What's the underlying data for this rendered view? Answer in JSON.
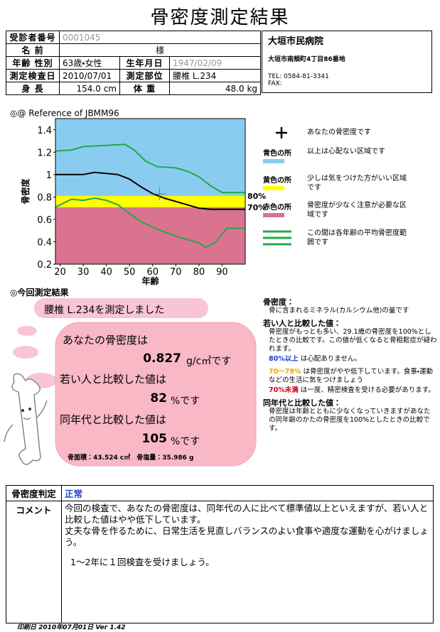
{
  "title": "骨密度測定結果",
  "patient": {
    "rows": [
      [
        "受診者番号",
        "0001045"
      ],
      [
        "名 前",
        "様"
      ],
      [
        "年齢 性別",
        "63歳・女性",
        "生年月日",
        "1947/02/09"
      ],
      [
        "測定検査日",
        "2010/07/01",
        "測定部位",
        "腰椎 L.234"
      ],
      [
        "身 長",
        "154.0 cm",
        "体 重",
        "48.0 kg"
      ]
    ]
  },
  "hospital": {
    "name": "大垣市民病院",
    "address": "大垣市南頬町4丁目86番地",
    "tel": "TEL: 0584-81-3341",
    "fax": "FAX:"
  },
  "chart": {
    "type": "line",
    "title": "◎@ Reference of JBMM96",
    "ylabel": "骨密度",
    "xlabel": "年齢",
    "xlim": [
      18,
      100
    ],
    "ylim": [
      0.2,
      1.5
    ],
    "xticks": [
      20,
      30,
      40,
      50,
      60,
      70,
      80,
      90
    ],
    "yticks": [
      0.2,
      0.4,
      0.6,
      0.8,
      1,
      1.2,
      1.4
    ],
    "thresholds": [
      {
        "value": 0.809,
        "label": "80%"
      },
      {
        "value": 0.708,
        "label": "70%"
      }
    ],
    "zone_colors": [
      "#8accf0",
      "#ffff00",
      "#d9738f"
    ],
    "series": [
      {
        "color": "#000000",
        "x": [
          18,
          30,
          35,
          40,
          45,
          50,
          55,
          60,
          65,
          70,
          75,
          80,
          85,
          90,
          100
        ],
        "y": [
          1.0,
          1.0,
          1.02,
          1.01,
          1.0,
          0.96,
          0.89,
          0.83,
          0.79,
          0.76,
          0.73,
          0.7,
          0.69,
          0.69,
          0.69
        ]
      },
      {
        "color": "#22a84a",
        "x": [
          18,
          25,
          30,
          40,
          48,
          52,
          57,
          62,
          70,
          75,
          80,
          85,
          90,
          100
        ],
        "y": [
          1.21,
          1.22,
          1.25,
          1.26,
          1.27,
          1.22,
          1.12,
          1.07,
          1.06,
          1.03,
          0.98,
          0.9,
          0.84,
          0.84
        ]
      },
      {
        "color": "#22a84a",
        "x": [
          18,
          25,
          30,
          35,
          40,
          45,
          50,
          55,
          60,
          65,
          70,
          75,
          80,
          83,
          87,
          92,
          100
        ],
        "y": [
          0.71,
          0.78,
          0.77,
          0.79,
          0.77,
          0.73,
          0.65,
          0.58,
          0.53,
          0.49,
          0.45,
          0.42,
          0.39,
          0.35,
          0.39,
          0.52,
          0.52
        ]
      }
    ],
    "point": {
      "x": 63,
      "y": 0.827,
      "color": "#777777"
    },
    "legend": [
      {
        "text": "あなたの骨密度です"
      },
      {
        "key": "青色の所",
        "text": "以上は心配ない区域です"
      },
      {
        "key": "黄色の所",
        "text": "少しは気をつけた方がいい区域です"
      },
      {
        "key": "赤色の所",
        "text": "骨密度が少なく注意が必要な区域です"
      },
      {
        "text": "この間は各年齢の平均骨密度範囲です"
      }
    ]
  },
  "result": {
    "heading": "◎今回測定結果",
    "site": "腰椎 L.234を測定しました",
    "bmd_label": "あなたの骨密度は",
    "bmd": "0.827",
    "bmd_unit": "g/c㎡です",
    "young_label": "若い人と比較した値は",
    "young": "82",
    "young_unit": "%です",
    "same_label": "同年代と比較した値は",
    "same": "105",
    "same_unit": "%です",
    "detail": "骨面積：43.524 c㎡　骨塩量：35.986 g"
  },
  "notes": {
    "bmd_heading": "骨密度：",
    "bmd_text": "骨に含まれるミネラル(カルシウム他)の量です",
    "young_heading": "若い人と比較した値：",
    "young_text": "骨密度がもっとも多い、29.1歳の骨密度を100%としたときの比較です。この値が低くなると骨粗鬆症が疑われます。",
    "ok_key": "80%以上",
    "ok_text": "は心配ありません。",
    "warn_key": "70〜79%",
    "warn_text": "は骨密度がやや低下しています。食事・運動などの生活に気をつけましょう",
    "bad_key": "70%未満",
    "bad_text": "は一度、精密検査を受ける必要があります。",
    "same_heading": "同年代と比較した値：",
    "same_text": "骨密度は年齢とともに少なくなっていきますがあなたの同年齢のかたの骨密度を100%としたときの比較です。"
  },
  "judgement": {
    "label": "骨密度判定",
    "value": "正常",
    "comment_label": "コメント",
    "comment": [
      "今回の検査で、あなたの骨密度は、同年代の人に比べて標準値以上といえますが、若い人と比較した値はやや低下しています。",
      "丈夫な骨を作るために、日常生活を見直しバランスのよい食事や適度な運動を心がけましょう。",
      "1～2年に１回検査を受けましょう。"
    ]
  },
  "footer": "印刷日 2010年07月01日 Ver 1.42"
}
